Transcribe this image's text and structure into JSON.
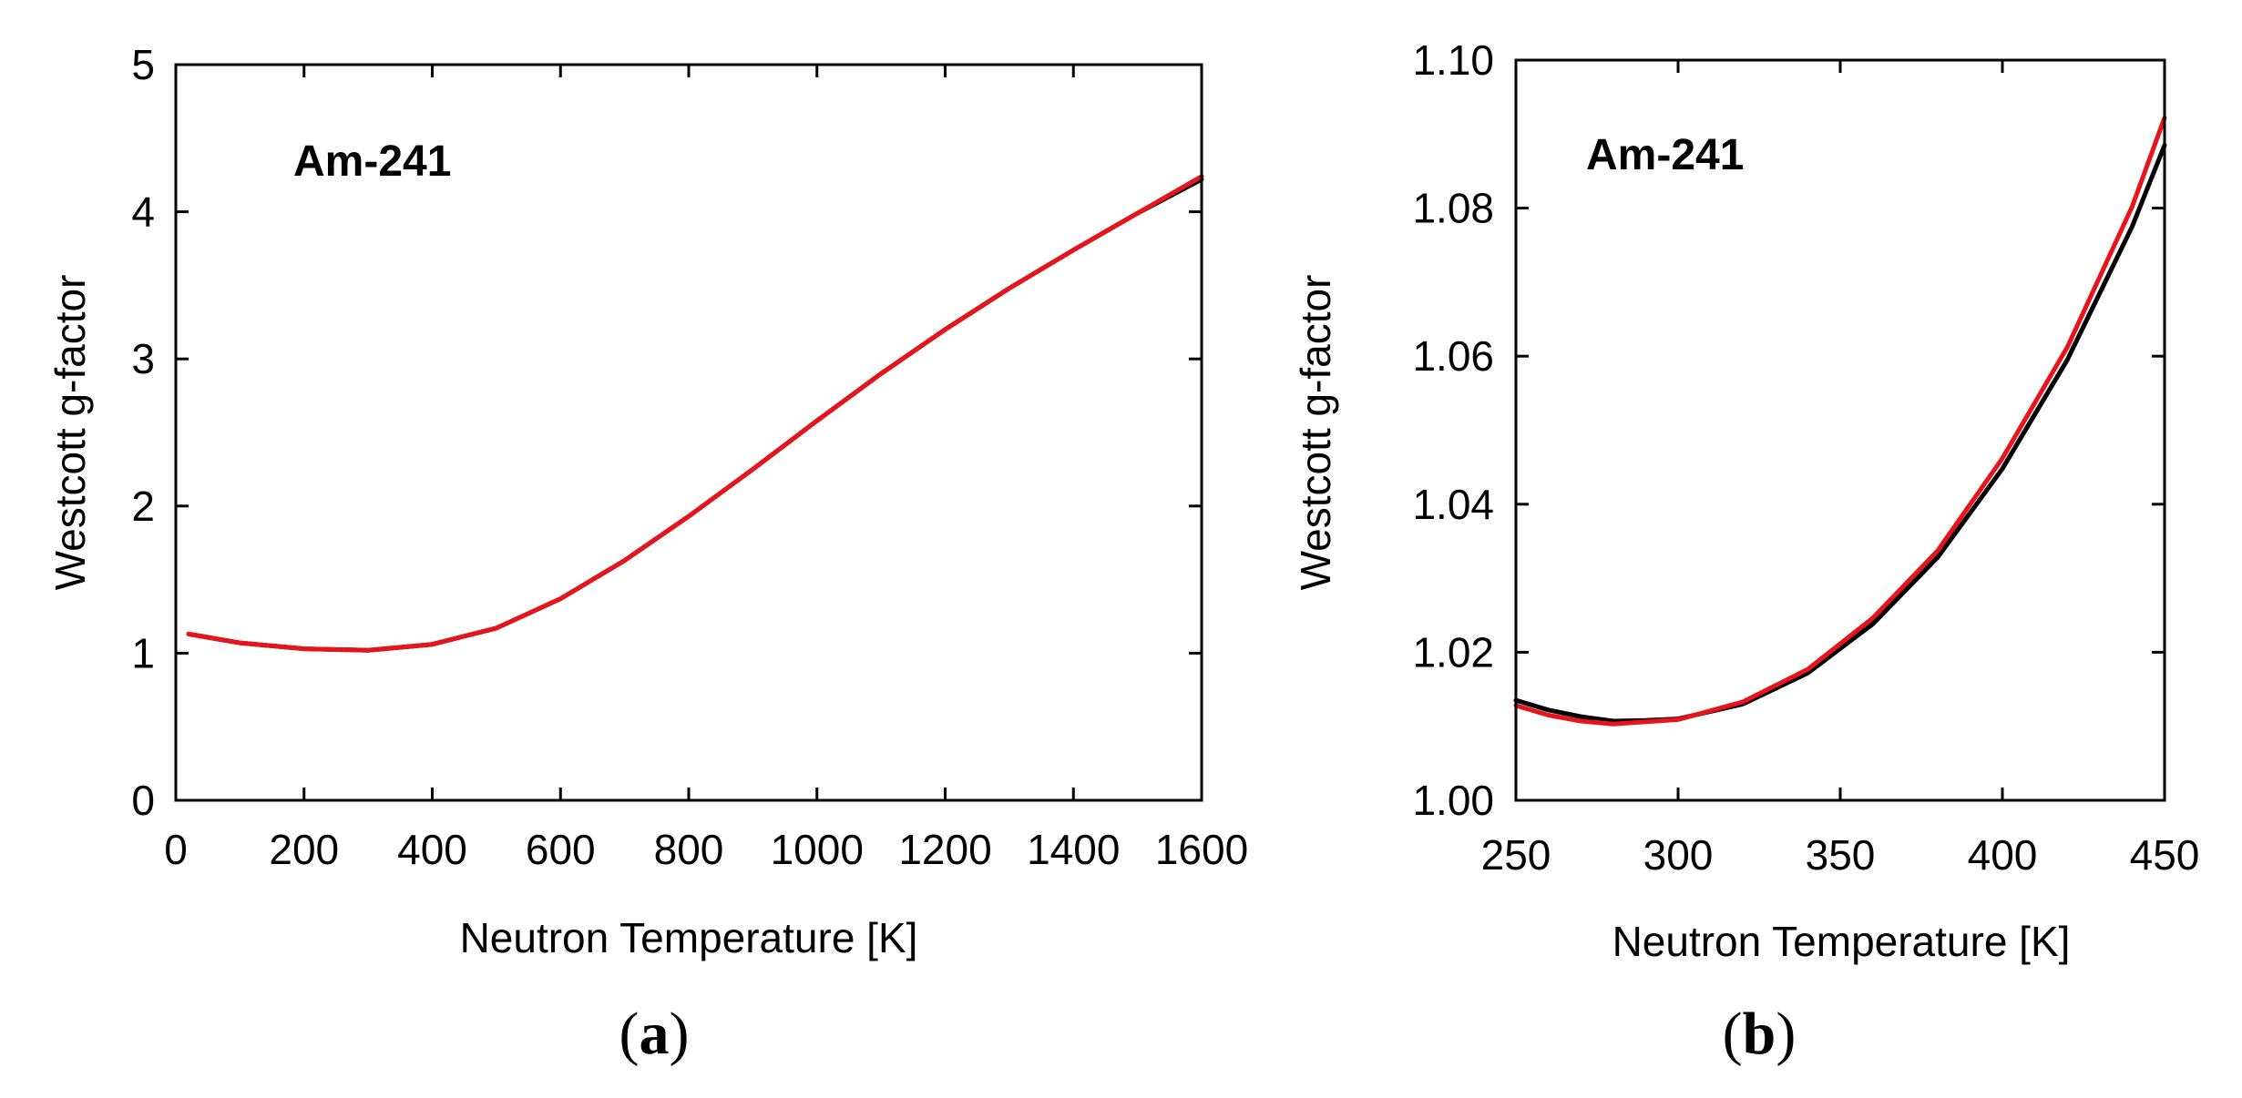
{
  "chart_data": [
    {
      "type": "line",
      "panel_label": "a",
      "annotation": "Am-241",
      "xlabel": "Neutron Temperature [K]",
      "ylabel": "Westcott g-factor",
      "xlim": [
        0,
        1600
      ],
      "ylim": [
        0,
        5
      ],
      "xticks": [
        0,
        200,
        400,
        600,
        800,
        1000,
        1200,
        1400,
        1600
      ],
      "xtick_labels": [
        "0",
        "200",
        "400",
        "600",
        "800",
        "1000",
        "1200",
        "1400",
        "1600"
      ],
      "yticks": [
        0,
        1,
        2,
        3,
        4,
        5
      ],
      "ytick_labels": [
        "0",
        "1",
        "2",
        "3",
        "4",
        "5"
      ],
      "series": [
        {
          "name": "black",
          "color": "#000000",
          "x": [
            20,
            100,
            200,
            300,
            400,
            500,
            600,
            700,
            800,
            900,
            1000,
            1100,
            1200,
            1300,
            1400,
            1500,
            1600
          ],
          "y": [
            1.13,
            1.07,
            1.03,
            1.02,
            1.06,
            1.17,
            1.37,
            1.63,
            1.93,
            2.25,
            2.58,
            2.9,
            3.2,
            3.48,
            3.74,
            3.99,
            4.22
          ]
        },
        {
          "name": "red",
          "color": "#e8141c",
          "x": [
            20,
            100,
            200,
            300,
            400,
            500,
            600,
            700,
            800,
            900,
            1000,
            1100,
            1200,
            1300,
            1400,
            1500,
            1600
          ],
          "y": [
            1.13,
            1.07,
            1.03,
            1.02,
            1.06,
            1.17,
            1.37,
            1.63,
            1.93,
            2.25,
            2.58,
            2.9,
            3.2,
            3.48,
            3.74,
            3.99,
            4.24
          ]
        }
      ]
    },
    {
      "type": "line",
      "panel_label": "b",
      "annotation": "Am-241",
      "xlabel": "Neutron Temperature [K]",
      "ylabel": "Westcott g-factor",
      "xlim": [
        250,
        450
      ],
      "ylim": [
        1.0,
        1.1
      ],
      "xticks": [
        250,
        300,
        350,
        400,
        450
      ],
      "xtick_labels": [
        "250",
        "300",
        "350",
        "400",
        "450"
      ],
      "yticks": [
        1.0,
        1.02,
        1.04,
        1.06,
        1.08,
        1.1
      ],
      "ytick_labels": [
        "1.00",
        "1.02",
        "1.04",
        "1.06",
        "1.08",
        "1.10"
      ],
      "series": [
        {
          "name": "black",
          "color": "#000000",
          "x": [
            250,
            260,
            270,
            280,
            290,
            300,
            320,
            340,
            360,
            380,
            400,
            420,
            440,
            450
          ],
          "y": [
            1.0135,
            1.0122,
            1.0113,
            1.0107,
            1.0108,
            1.011,
            1.013,
            1.0172,
            1.0238,
            1.0328,
            1.0448,
            1.0595,
            1.0775,
            1.0885
          ]
        },
        {
          "name": "red",
          "color": "#e8141c",
          "x": [
            250,
            260,
            270,
            280,
            290,
            300,
            320,
            340,
            360,
            380,
            400,
            420,
            440,
            450
          ],
          "y": [
            1.0128,
            1.0115,
            1.0107,
            1.0103,
            1.0106,
            1.0109,
            1.0133,
            1.0177,
            1.0246,
            1.0337,
            1.0462,
            1.0612,
            1.0802,
            1.0922
          ]
        }
      ]
    }
  ]
}
